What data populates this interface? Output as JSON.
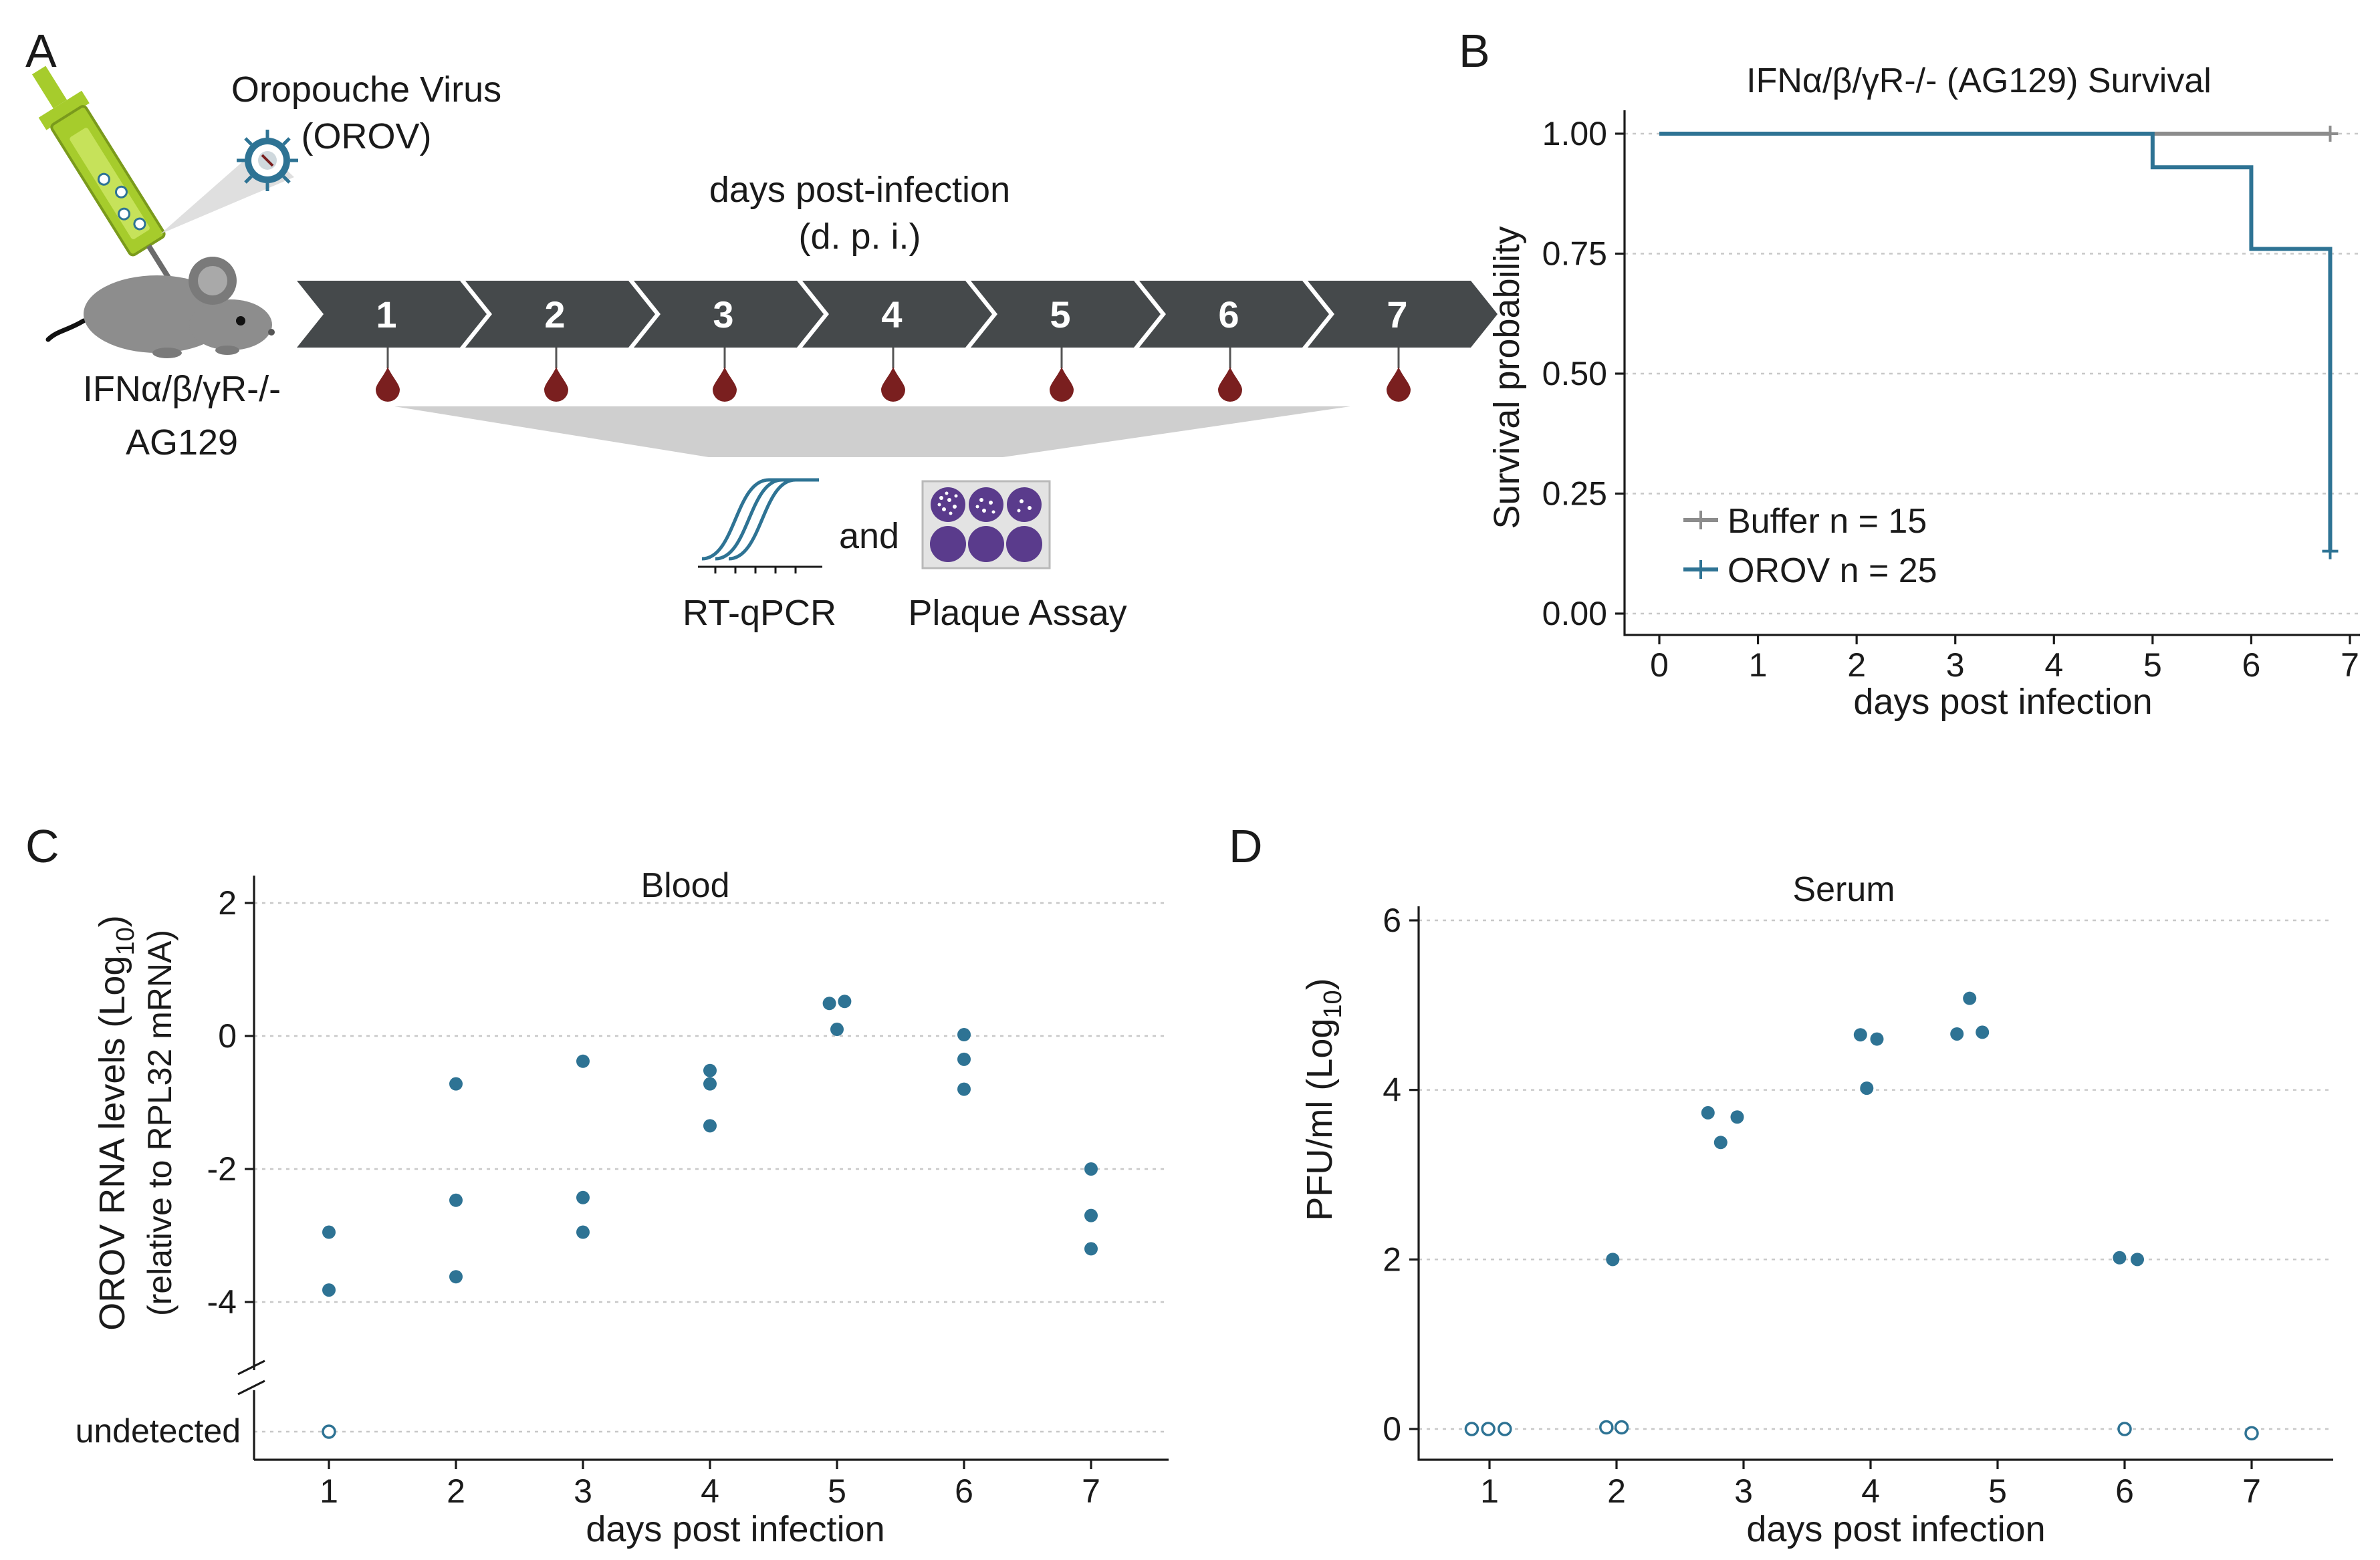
{
  "colors": {
    "orov": "#2e7394",
    "buffer": "#8c8c8c",
    "chevron": "#45494b",
    "blood_drop": "#7a1f1f",
    "syringe": "#a6cc2c",
    "mouse": "#8d8d8d",
    "plaque": "#5a3b8c"
  },
  "panelA": {
    "letter": "A",
    "virus_line1": "Oropouche Virus",
    "virus_line2": "(OROV)",
    "mouse_line1": "IFNα/β/γR-/-",
    "mouse_line2": "AG129",
    "days_line1": "days post-infection",
    "days_line2": "(d. p. i.)",
    "days": [
      "1",
      "2",
      "3",
      "4",
      "5",
      "6",
      "7"
    ],
    "and": "and",
    "rtqpcr": "RT-qPCR",
    "plaque": "Plaque Assay",
    "icons": [
      "mouse-icon",
      "syringe-icon",
      "virus-icon",
      "blood-drop-icon",
      "qpcr-curve-icon",
      "plaque-plate-icon"
    ]
  },
  "chart_data": [
    {
      "id": "B",
      "type": "line",
      "letter": "B",
      "title": "IFNα/β/γR-/- (AG129) Survival",
      "xlabel": "days post infection",
      "ylabel": "Survival probability",
      "xlim": [
        0,
        7
      ],
      "ylim": [
        0,
        1
      ],
      "xticks": [
        0,
        1,
        2,
        3,
        4,
        5,
        6,
        7
      ],
      "yticks": [
        "0.00",
        "0.25",
        "0.50",
        "0.75",
        "1.00"
      ],
      "grid": "horizontal",
      "legend_position": "bottom-left",
      "series": [
        {
          "name": "Buffer n = 15",
          "color": "#8c8c8c",
          "step": [
            [
              0,
              1.0
            ],
            [
              6.8,
              1.0
            ]
          ],
          "censor": [
            [
              6.8,
              1.0
            ]
          ]
        },
        {
          "name": "OROV n = 25",
          "color": "#2e7394",
          "step": [
            [
              0,
              1.0
            ],
            [
              5.0,
              0.93
            ],
            [
              6.0,
              0.76
            ],
            [
              6.8,
              0.13
            ]
          ],
          "censor": [
            [
              6.8,
              0.13
            ]
          ]
        }
      ]
    },
    {
      "id": "C",
      "type": "scatter",
      "letter": "C",
      "title": "Blood",
      "xlabel": "days post infection",
      "ylabel_main": "OROV RNA levels (Log",
      "ylabel_sub": "10",
      "ylabel_close": ")",
      "ylabel2": "(relative to RPL32 mRNA)",
      "xticks": [
        1,
        2,
        3,
        4,
        5,
        6,
        7
      ],
      "xlim": [
        0.4,
        7.6
      ],
      "yticks": [
        "2",
        "0",
        "-2",
        "-4"
      ],
      "undetected_label": "undetected",
      "ylim": [
        -6,
        2.3
      ],
      "undetected_y": -6,
      "grid": "horizontal",
      "points": [
        {
          "x": 1,
          "y": -2.95
        },
        {
          "x": 1,
          "y": -3.82
        },
        {
          "x": 2,
          "y": -0.72
        },
        {
          "x": 2,
          "y": -2.47
        },
        {
          "x": 2,
          "y": -3.62
        },
        {
          "x": 3,
          "y": -0.38
        },
        {
          "x": 3,
          "y": -2.43
        },
        {
          "x": 3,
          "y": -2.95
        },
        {
          "x": 4,
          "y": -0.52
        },
        {
          "x": 4,
          "y": -0.72
        },
        {
          "x": 4,
          "y": -1.35
        },
        {
          "x": 4.94,
          "y": 0.49
        },
        {
          "x": 5.06,
          "y": 0.52
        },
        {
          "x": 5.0,
          "y": 0.1
        },
        {
          "x": 6,
          "y": 0.02
        },
        {
          "x": 6,
          "y": -0.35
        },
        {
          "x": 6,
          "y": -0.8
        },
        {
          "x": 7,
          "y": -2.0
        },
        {
          "x": 7,
          "y": -2.7
        },
        {
          "x": 7,
          "y": -3.2
        }
      ],
      "undetected_points": [
        {
          "x": 1,
          "y": -6
        }
      ]
    },
    {
      "id": "D",
      "type": "scatter",
      "letter": "D",
      "title": "Serum",
      "xlabel": "days post infection",
      "ylabel_main": "PFU/ml (Log",
      "ylabel_sub": "10",
      "ylabel_close": ")",
      "xticks": [
        1,
        2,
        3,
        4,
        5,
        6,
        7
      ],
      "xlim": [
        0.4,
        7.6
      ],
      "yticks": [
        "0",
        "2",
        "4",
        "6"
      ],
      "ylim": [
        -0.4,
        6.2
      ],
      "grid": "horizontal",
      "points": [
        {
          "x": 1.97,
          "y": 2.0
        },
        {
          "x": 2.72,
          "y": 3.73
        },
        {
          "x": 2.82,
          "y": 3.38
        },
        {
          "x": 2.95,
          "y": 3.68
        },
        {
          "x": 3.92,
          "y": 4.65
        },
        {
          "x": 3.97,
          "y": 4.02
        },
        {
          "x": 4.05,
          "y": 4.6
        },
        {
          "x": 4.68,
          "y": 4.66
        },
        {
          "x": 4.78,
          "y": 5.08
        },
        {
          "x": 4.88,
          "y": 4.68
        },
        {
          "x": 5.96,
          "y": 2.02
        },
        {
          "x": 6.1,
          "y": 2.0
        }
      ],
      "undetected_points": [
        {
          "x": 0.86,
          "y": 0.0
        },
        {
          "x": 0.99,
          "y": 0.0
        },
        {
          "x": 1.12,
          "y": 0.0
        },
        {
          "x": 1.92,
          "y": 0.02
        },
        {
          "x": 2.04,
          "y": 0.02
        },
        {
          "x": 6.0,
          "y": 0.0
        },
        {
          "x": 7.0,
          "y": -0.05
        }
      ]
    }
  ]
}
